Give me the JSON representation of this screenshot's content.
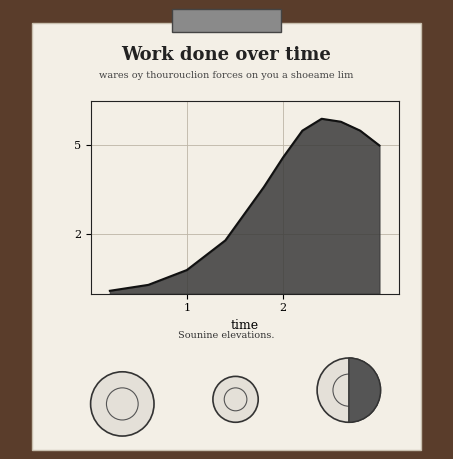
{
  "chart_data": {
    "type": "area",
    "title": "Work done over time",
    "subtitle": "wares oy thourouclion forces on you a shoeame lim",
    "x_label": "time",
    "annotations": [
      "Sounine elevations."
    ],
    "x": [
      0.2,
      0.6,
      1.0,
      1.4,
      1.8,
      2.0,
      2.2,
      2.4,
      2.6,
      2.8,
      3.0
    ],
    "values": [
      0.1,
      0.3,
      0.8,
      1.8,
      3.6,
      4.6,
      5.5,
      5.9,
      5.8,
      5.5,
      5.0
    ],
    "color": "#3a3a3a",
    "xlim": [
      0,
      3.2
    ],
    "xticks": [
      1,
      2
    ],
    "ylim": [
      0,
      6.5
    ],
    "yticks": [
      2,
      5
    ],
    "grid": true
  }
}
